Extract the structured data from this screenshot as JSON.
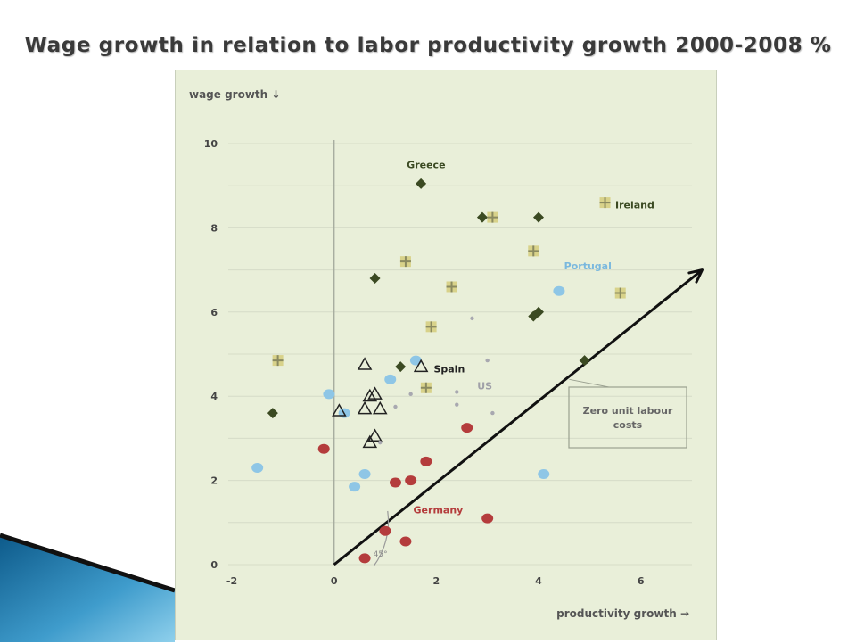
{
  "slide": {
    "title": "Wage growth in relation to labor productivity growth 2000-2008 %"
  },
  "chart_data": {
    "type": "scatter",
    "title": "",
    "xlabel": "productivity growth →",
    "ylabel": "wage growth ↓",
    "xlim": [
      -2,
      7
    ],
    "ylim": [
      0,
      10
    ],
    "xticks": [
      -2,
      0,
      2,
      4,
      6
    ],
    "yticks": [
      0,
      2,
      4,
      6,
      8,
      10
    ],
    "grid": true,
    "background_color": "#e9efd9",
    "series": [
      {
        "name": "Greece",
        "marker": "diamond",
        "color": "#3b4a22",
        "points": [
          [
            1.7,
            9.05
          ],
          [
            2.9,
            8.25
          ],
          [
            4.0,
            8.25
          ],
          [
            0.8,
            6.8
          ],
          [
            3.9,
            5.9
          ],
          [
            4.0,
            6.0
          ],
          [
            1.3,
            4.7
          ],
          [
            4.9,
            4.85
          ],
          [
            -1.2,
            3.6
          ]
        ]
      },
      {
        "name": "Ireland",
        "marker": "plus",
        "color": "#8a8a60",
        "points": [
          [
            5.3,
            8.6
          ],
          [
            3.1,
            8.25
          ],
          [
            3.9,
            7.45
          ],
          [
            1.4,
            7.2
          ],
          [
            2.3,
            6.6
          ],
          [
            5.6,
            6.45
          ],
          [
            1.9,
            5.65
          ],
          [
            -1.1,
            4.85
          ],
          [
            1.8,
            4.2
          ]
        ]
      },
      {
        "name": "Portugal",
        "marker": "circle",
        "color": "#8ec6e6",
        "points": [
          [
            4.4,
            6.5
          ],
          [
            1.6,
            4.85
          ],
          [
            1.1,
            4.4
          ],
          [
            -0.1,
            4.05
          ],
          [
            0.2,
            3.6
          ],
          [
            -1.5,
            2.3
          ],
          [
            0.6,
            2.15
          ],
          [
            0.4,
            1.85
          ],
          [
            4.1,
            2.15
          ]
        ]
      },
      {
        "name": "Spain",
        "marker": "triangle",
        "color": "#222222",
        "points": [
          [
            0.6,
            4.75
          ],
          [
            1.7,
            4.7
          ],
          [
            0.7,
            4.0
          ],
          [
            0.8,
            4.05
          ],
          [
            0.6,
            3.7
          ],
          [
            0.9,
            3.7
          ],
          [
            0.1,
            3.65
          ],
          [
            0.8,
            3.05
          ],
          [
            0.7,
            2.9
          ]
        ]
      },
      {
        "name": "US",
        "marker": "dot",
        "color": "#a8a8b0",
        "points": [
          [
            2.7,
            5.85
          ],
          [
            3.0,
            4.85
          ],
          [
            2.4,
            4.1
          ],
          [
            1.5,
            4.05
          ],
          [
            2.4,
            3.8
          ],
          [
            3.1,
            3.6
          ],
          [
            1.2,
            3.75
          ],
          [
            0.9,
            2.9
          ]
        ]
      },
      {
        "name": "Germany",
        "marker": "circle",
        "color": "#b43c3c",
        "points": [
          [
            -0.2,
            2.75
          ],
          [
            2.6,
            3.25
          ],
          [
            1.8,
            2.45
          ],
          [
            1.5,
            2.0
          ],
          [
            1.2,
            1.95
          ],
          [
            3.0,
            1.1
          ],
          [
            1.0,
            0.8
          ],
          [
            1.4,
            0.55
          ],
          [
            0.6,
            0.15
          ]
        ]
      }
    ],
    "labels": [
      {
        "text": "Greece",
        "x": 1.8,
        "y": 9.5,
        "color": "#3b4a22"
      },
      {
        "text": "Ireland",
        "x": 5.5,
        "y": 8.55,
        "color": "#3b4a22"
      },
      {
        "text": "Portugal",
        "x": 4.5,
        "y": 7.1,
        "color": "#7ab8de"
      },
      {
        "text": "Spain",
        "x": 1.95,
        "y": 4.65,
        "color": "#222222"
      },
      {
        "text": "US",
        "x": 2.8,
        "y": 4.25,
        "color": "#a0a0a8"
      },
      {
        "text": "Germany",
        "x": 1.55,
        "y": 1.3,
        "color": "#b43c3c"
      }
    ],
    "annotation": {
      "text_lines": [
        "Zero unit labour",
        "costs"
      ],
      "points_to": [
        4.6,
        4.4
      ]
    },
    "reference_line": {
      "angle_label": "45°",
      "from": [
        0,
        0
      ],
      "to": [
        7.2,
        7.0
      ]
    }
  }
}
